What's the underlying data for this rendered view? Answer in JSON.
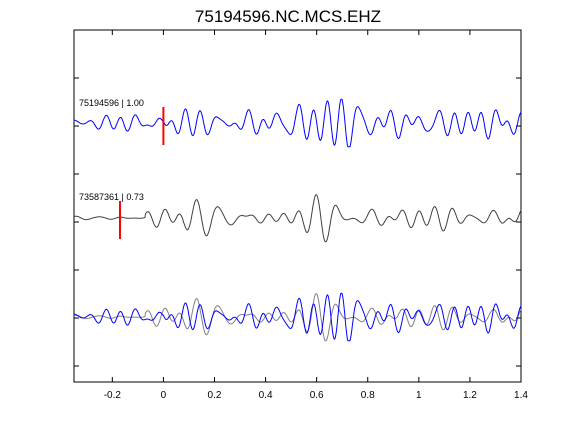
{
  "chart_data": {
    "type": "line",
    "title": "75194596.NC.MCS.EHZ",
    "xlabel": "",
    "ylabel": "",
    "xlim": [
      -0.35,
      1.4
    ],
    "x_ticks": [
      -0.2,
      0,
      0.2,
      0.4,
      0.6,
      0.8,
      1,
      1.2,
      1.4
    ],
    "x_tick_labels": [
      "-0.2",
      "0",
      "0.2",
      "0.4",
      "0.6",
      "0.8",
      "1",
      "1.2",
      "1.4"
    ],
    "y_ticks_visible": false,
    "grid": false,
    "traces": [
      {
        "label_id": "75194596",
        "label_value": "1.00",
        "color": "#0000ff",
        "pick_time": 0.0,
        "pick_color": "#ff0000"
      },
      {
        "label_id": "73587361",
        "label_value": "0.73",
        "color": "#404040",
        "pick_time": -0.17,
        "pick_color": "#ff0000"
      },
      {
        "label_id": "overlay",
        "colors": [
          "#0000ff",
          "#808080"
        ]
      }
    ]
  }
}
